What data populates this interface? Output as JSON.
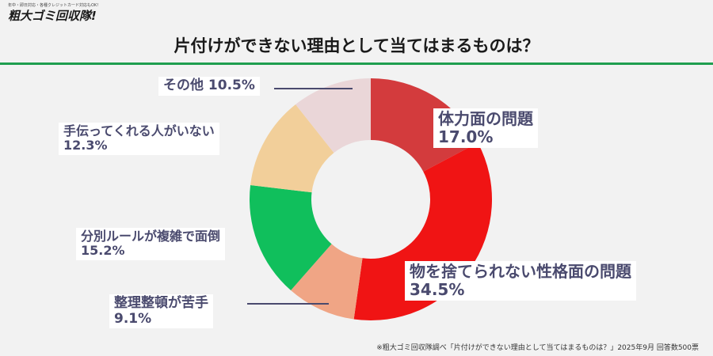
{
  "logo": {
    "tagline": "年中・即日対応・各種クレジットカード対応もOK!",
    "name": "粗大ゴミ回収隊!"
  },
  "colors": {
    "accent_rule": "#1f9e4f",
    "label_text": "#4a4a6e"
  },
  "chart_data": {
    "type": "pie",
    "style": "donut",
    "title": "片付けができない理由として当てはまるものは？",
    "start": "12 o'clock, clockwise",
    "slices": [
      {
        "label": "体力面の問題",
        "value": 17.0,
        "display": "17.0%",
        "color": "#d33b3d"
      },
      {
        "label": "物を捨てられない性格面の問題",
        "value": 34.5,
        "display": "34.5%",
        "color": "#f01414"
      },
      {
        "label": "整理整頓が苦手",
        "value": 9.1,
        "display": "9.1%",
        "color": "#f0a585"
      },
      {
        "label": "分別ルールが複雑で面倒",
        "value": 15.2,
        "display": "15.2%",
        "color": "#10bf5c"
      },
      {
        "label": "手伝ってくれる人がいない",
        "value": 12.3,
        "display": "12.3%",
        "color": "#f2cf9a"
      },
      {
        "label": "その他",
        "value": 10.5,
        "display": "10.5%",
        "color": "#ead6d8"
      }
    ]
  },
  "footnote": "※粗大ゴミ回収隊調べ「片付けができない理由として当てはまるものは？」2025年9月 回答数500票"
}
